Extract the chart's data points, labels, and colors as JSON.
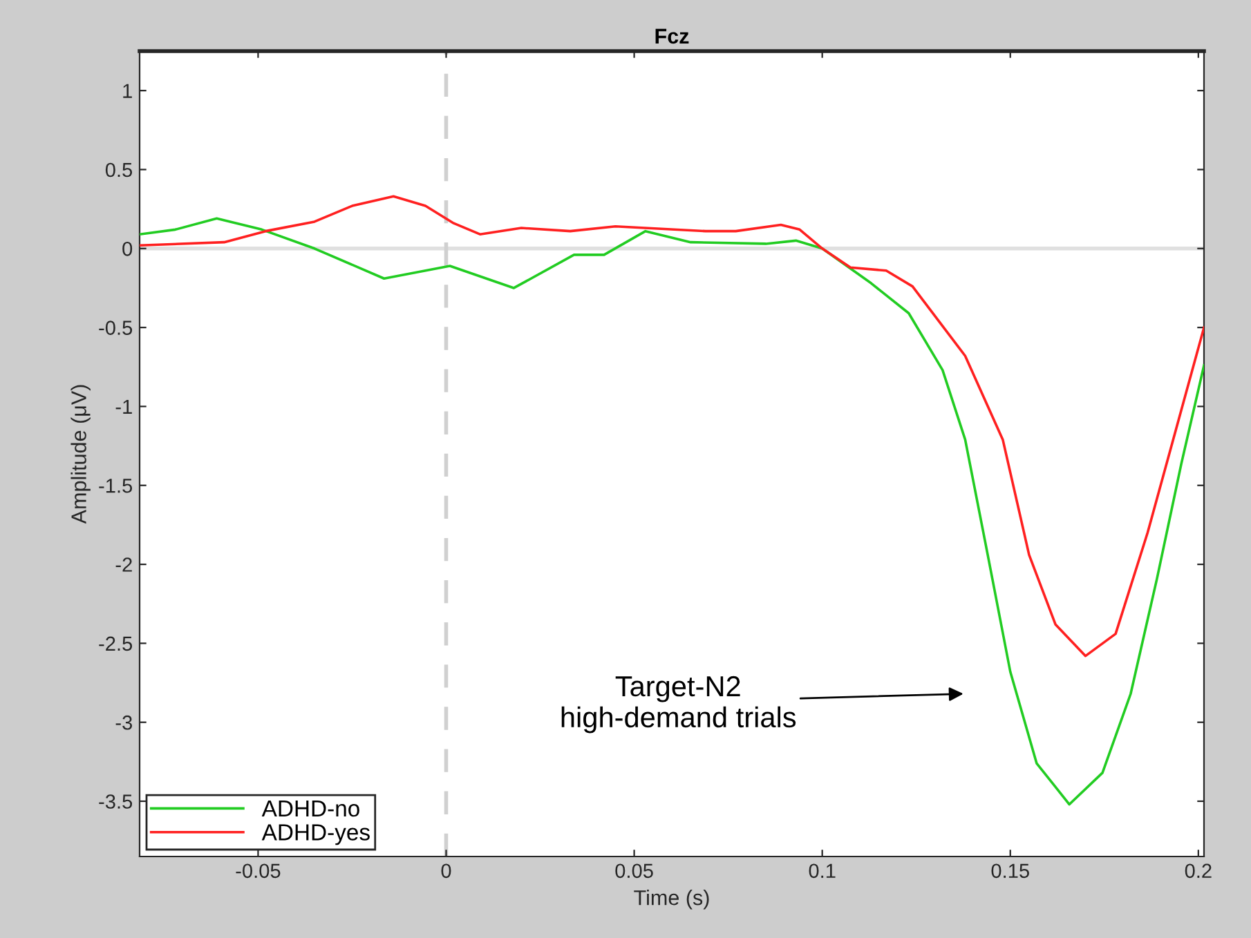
{
  "chart_data": {
    "type": "line",
    "title": "Fcz",
    "xlabel": "Time (s)",
    "ylabel": "Amplitude (μV)",
    "xlim": [
      -0.0815,
      0.2015
    ],
    "ylim": [
      -3.85,
      1.25
    ],
    "xticks": [
      -0.05,
      0,
      0.05,
      0.1,
      0.15,
      0.2
    ],
    "yticks": [
      -3.5,
      -3,
      -2.5,
      -2,
      -1.5,
      -1,
      -0.5,
      0,
      0.5,
      1
    ],
    "grid": false,
    "legend": "bottom left",
    "line_style": "solid",
    "marker": "none",
    "series": [
      {
        "name": "ADHD-no",
        "color": "#22cc22",
        "x": [
          -0.0815,
          -0.072,
          -0.061,
          -0.049,
          -0.035,
          -0.0165,
          0.001,
          0.018,
          0.034,
          0.042,
          0.053,
          0.065,
          0.085,
          0.093,
          0.1,
          0.113,
          0.123,
          0.132,
          0.138,
          0.144,
          0.15,
          0.157,
          0.1657,
          0.1745,
          0.182,
          0.189,
          0.1955,
          0.2015
        ],
        "values": [
          0.09,
          0.12,
          0.19,
          0.12,
          0.0,
          -0.19,
          -0.11,
          -0.25,
          -0.04,
          -0.04,
          0.11,
          0.04,
          0.03,
          0.05,
          0.0,
          -0.22,
          -0.41,
          -0.77,
          -1.21,
          -1.94,
          -2.68,
          -3.26,
          -3.52,
          -3.32,
          -2.82,
          -2.09,
          -1.36,
          -0.74
        ]
      },
      {
        "name": "ADHD-yes",
        "color": "#ff2020",
        "x": [
          -0.0815,
          -0.059,
          -0.048,
          -0.035,
          -0.025,
          -0.014,
          -0.0055,
          0.002,
          0.009,
          0.02,
          0.033,
          0.045,
          0.069,
          0.077,
          0.089,
          0.094,
          0.1,
          0.1075,
          0.117,
          0.124,
          0.138,
          0.148,
          0.155,
          0.162,
          0.17,
          0.178,
          0.1865,
          0.194,
          0.2015
        ],
        "values": [
          0.02,
          0.04,
          0.11,
          0.17,
          0.27,
          0.33,
          0.27,
          0.16,
          0.09,
          0.13,
          0.11,
          0.14,
          0.11,
          0.11,
          0.15,
          0.12,
          0.0,
          -0.12,
          -0.14,
          -0.24,
          -0.68,
          -1.21,
          -1.94,
          -2.38,
          -2.58,
          -2.44,
          -1.8,
          -1.15,
          -0.5
        ]
      }
    ],
    "ref_lines": [
      {
        "axis": "y",
        "value": 0,
        "color": "#e0e0e0",
        "line_style": "solid"
      },
      {
        "axis": "x",
        "value": 0,
        "color": "#d0d0d0",
        "line_style": "dashed"
      }
    ],
    "annotations": [
      "Target-N2\nhigh-demand trials"
    ]
  }
}
